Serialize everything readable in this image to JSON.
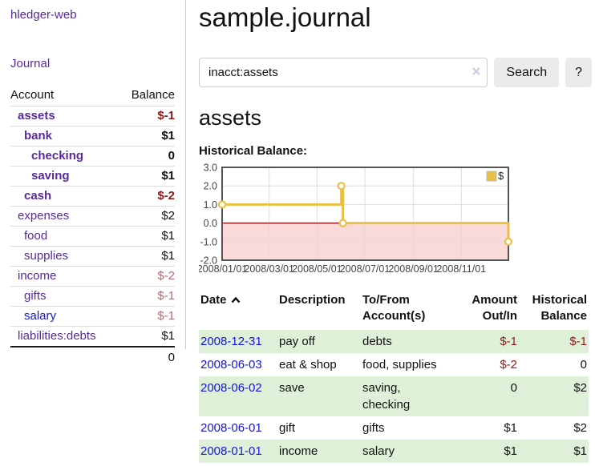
{
  "colors": {
    "link_purple": "#5a2a9a",
    "link_blue": "#1414e0",
    "negative_strong": "#8b1a1a",
    "negative_faded": "#b36d72",
    "row_stripe_green": "#dff0d8",
    "chart_gold": "#e9c046",
    "chart_negative_fill": "#fad9d9",
    "chart_zero_line": "#8b0000"
  },
  "sidebar": {
    "brand": "hledger-web",
    "nav_journal": "Journal",
    "account_header": "Account",
    "balance_header": "Balance",
    "accounts": [
      {
        "name": "assets",
        "balance": "$-1",
        "depth": 1,
        "bold": true,
        "balance_class": "neg-strong",
        "link_class": "acct-visited"
      },
      {
        "name": "bank",
        "balance": "$1",
        "depth": 2,
        "bold": true,
        "balance_class": "",
        "link_class": "acct-visited"
      },
      {
        "name": "checking",
        "balance": "0",
        "depth": 3,
        "bold": true,
        "balance_class": "",
        "link_class": "acct-visited"
      },
      {
        "name": "saving",
        "balance": "$1",
        "depth": 3,
        "bold": true,
        "balance_class": "",
        "link_class": "acct-visited"
      },
      {
        "name": "cash",
        "balance": "$-2",
        "depth": 2,
        "bold": true,
        "balance_class": "neg-strong",
        "link_class": "acct-visited"
      },
      {
        "name": "expenses",
        "balance": "$2",
        "depth": 1,
        "bold": false,
        "balance_class": "",
        "link_class": "acct-visited"
      },
      {
        "name": "food",
        "balance": "$1",
        "depth": 2,
        "bold": false,
        "balance_class": "",
        "link_class": "acct-visited"
      },
      {
        "name": "supplies",
        "balance": "$1",
        "depth": 2,
        "bold": false,
        "balance_class": "",
        "link_class": "acct-visited"
      },
      {
        "name": "income",
        "balance": "$-2",
        "depth": 1,
        "bold": false,
        "balance_class": "neg-faded",
        "link_class": "acct-visited"
      },
      {
        "name": "gifts",
        "balance": "$-1",
        "depth": 2,
        "bold": false,
        "balance_class": "neg-faded",
        "link_class": "acct-visited"
      },
      {
        "name": "salary",
        "balance": "$-1",
        "depth": 2,
        "bold": false,
        "balance_class": "neg-faded",
        "link_class": "acct-unvisited"
      },
      {
        "name": "liabilities:debts",
        "balance": "$1",
        "depth": 1,
        "bold": false,
        "balance_class": "",
        "link_class": "acct-visited",
        "last": true
      }
    ],
    "total": "0"
  },
  "main": {
    "title": "sample.journal",
    "search": {
      "value": "inacct:assets",
      "clear_icon": "×",
      "search_button": "Search",
      "help_button": "?"
    },
    "account_heading": "assets",
    "chart_label": "Historical Balance:"
  },
  "chart_data": {
    "type": "line",
    "title": "Historical Balance:",
    "steps": true,
    "x_start": "2008-01-01",
    "x_span_days": 365,
    "ylim": [
      -2,
      3
    ],
    "y_ticks": [
      "3.0",
      "2.0",
      "1.0",
      "0.0",
      "-1.0",
      "-2.0"
    ],
    "x_ticks": [
      "2008/01/01",
      "2008/03/01",
      "2008/05/01",
      "2008/07/01",
      "2008/09/01",
      "2008/11/01"
    ],
    "grid": true,
    "legend": {
      "label": "$",
      "position": "top-right"
    },
    "series": [
      {
        "name": "$",
        "color": "#e9c046",
        "points": [
          [
            "2008-01-01",
            1
          ],
          [
            "2008-06-01",
            2
          ],
          [
            "2008-06-03",
            0
          ],
          [
            "2008-12-31",
            -1
          ]
        ]
      }
    ]
  },
  "register": {
    "headers": {
      "date": "Date",
      "description": "Description",
      "accounts": "To/From Account(s)",
      "amount": "Amount Out/In",
      "balance": "Historical Balance"
    },
    "sort_icon": "chevron-up",
    "rows": [
      {
        "date": "2008-12-31",
        "description": "pay off",
        "accounts": "debts",
        "amount": "$-1",
        "amount_class": "neg-strong",
        "balance": "$-1",
        "balance_class": "neg-strong"
      },
      {
        "date": "2008-06-03",
        "description": "eat & shop",
        "accounts": "food, supplies",
        "amount": "$-2",
        "amount_class": "neg-strong",
        "balance": "0",
        "balance_class": ""
      },
      {
        "date": "2008-06-02",
        "description": "save",
        "accounts": "saving, checking",
        "amount": "0",
        "amount_class": "",
        "balance": "$2",
        "balance_class": ""
      },
      {
        "date": "2008-06-01",
        "description": "gift",
        "accounts": "gifts",
        "amount": "$1",
        "amount_class": "",
        "balance": "$2",
        "balance_class": ""
      },
      {
        "date": "2008-01-01",
        "description": "income",
        "accounts": "salary",
        "amount": "$1",
        "amount_class": "",
        "balance": "$1",
        "balance_class": ""
      }
    ]
  }
}
